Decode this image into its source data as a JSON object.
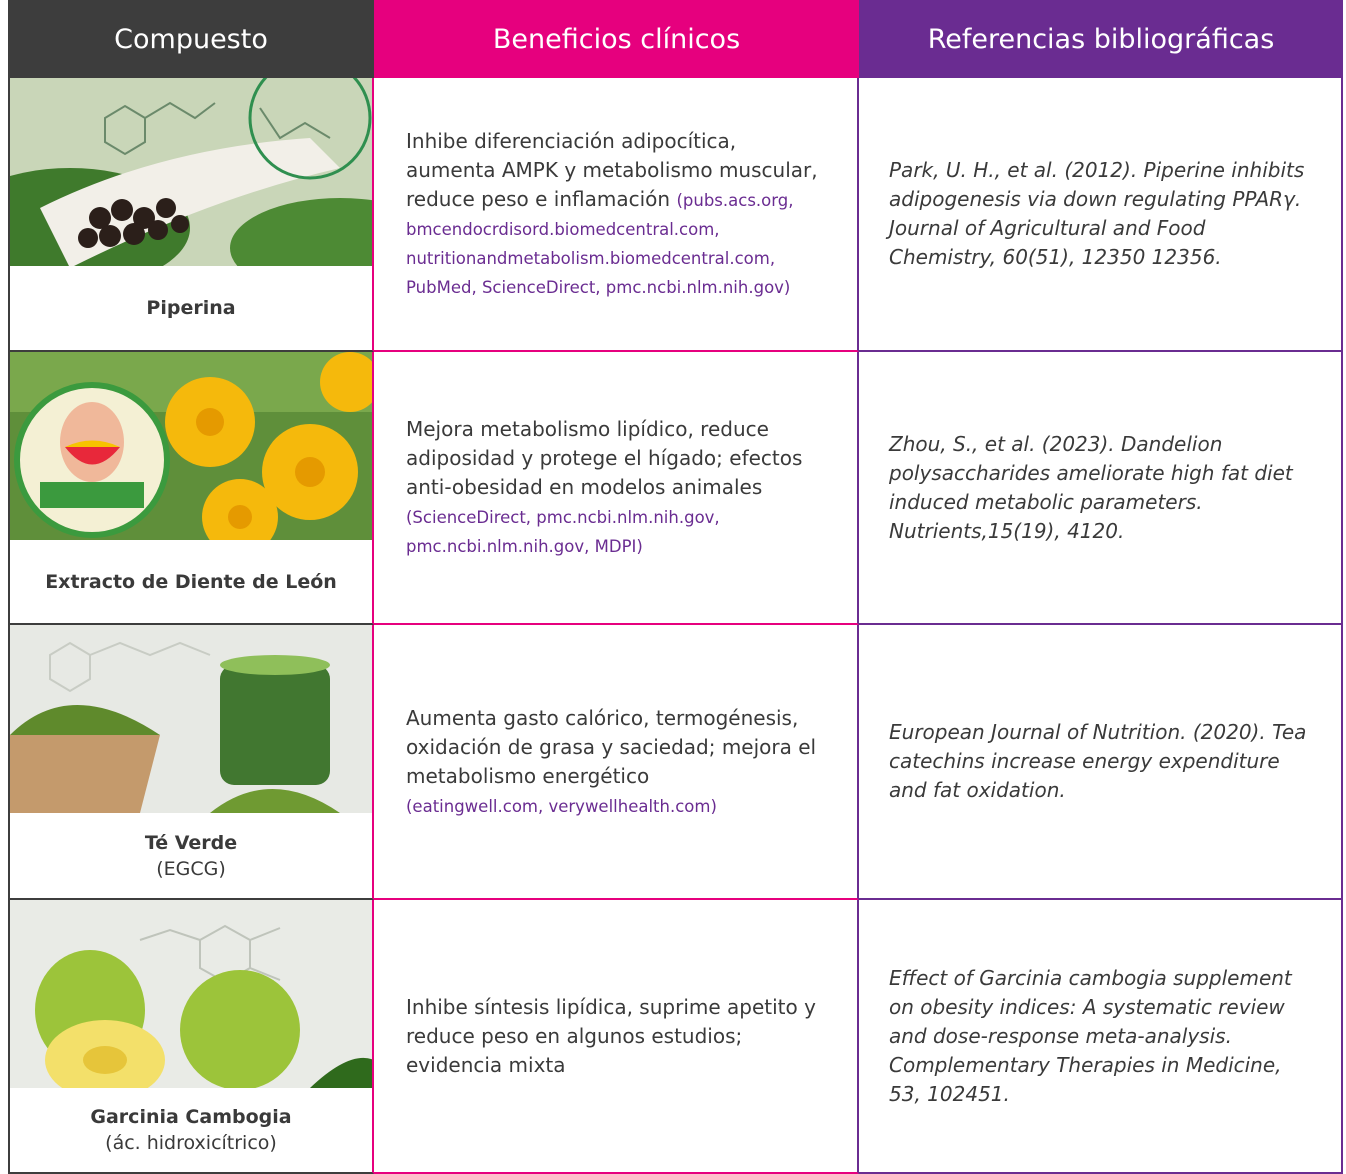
{
  "header": {
    "columns": [
      "Compuesto",
      "Beneficios clínicos",
      "Referencias bibliográficas"
    ]
  },
  "rows": [
    {
      "compound": "Piperina",
      "benefit": "Inhibe diferenciación adipocítica, aumenta AMPK y metabolismo muscular, reduce peso e inflamación",
      "sources": "(pubs.acs.org, bmcendocrdisord.biomedcentral.com, nutritionandmetabolism.biomedcentral.com, PubMed, ScienceDirect, pmc.ncbi.nlm.nih.gov)",
      "reference": "Park, U.  H., et al. (2012). Piperine inhibits adipogenesis via down regulating PPARγ. Journal of Agricultural and Food Chemistry, 60(51), 12350 12356."
    },
    {
      "compound": "Extracto de Diente de León",
      "benefit": "Mejora metabolismo lipídico, reduce adiposidad y protege el hígado; efectos anti-obesidad en modelos animales",
      "sources": "(ScienceDirect, pmc.ncbi.nlm.nih.gov, pmc.ncbi.nlm.nih.gov, MDPI)",
      "reference": "Zhou, S., et al. (2023). Dandelion polysaccharides ameliorate high fat diet induced metabolic parameters. Nutrients,15(19), 4120."
    },
    {
      "compound": "Té Verde",
      "detail": "(EGCG)",
      "benefit": "Aumenta gasto calórico, termogénesis, oxidación de grasa y saciedad; mejora el metabolismo energético",
      "sources": "(eatingwell.com, verywellhealth.com)",
      "reference": "European Journal of Nutrition. (2020). Tea catechins increase energy expenditure and fat oxidation."
    },
    {
      "compound": "Garcinia Cambogia",
      "detail": "(ác. hidroxicítrico)",
      "benefit": "Inhibe síntesis lipídica, suprime apetito y reduce peso en algunos estudios; evidencia mixta",
      "reference": "Effect of Garcinia cambogia supplement on obesity indices: A systematic review and dose-response meta-analysis. Complementary Therapies in Medicine, 53, 102451."
    }
  ]
}
